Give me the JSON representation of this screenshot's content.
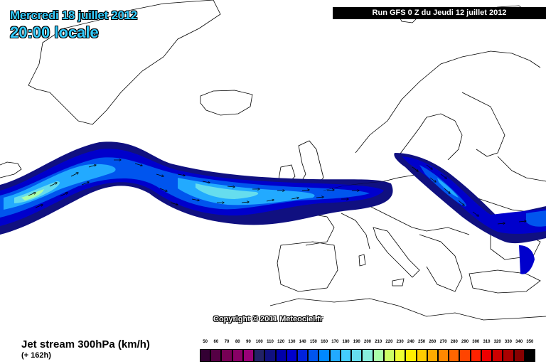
{
  "header": {
    "date": "Mercredi 18 juillet 2012",
    "time": "20:00 locale",
    "run": "Run GFS 0 Z du Jeudi 12 juillet 2012"
  },
  "map": {
    "copyright": "Copyright © 2011 Meteociel.fr",
    "land_color": "#ffffff",
    "coast_color": "#000000"
  },
  "footer": {
    "title": "Jet stream 300hPa (km/h)",
    "forecast": "(+ 162h)"
  },
  "legend": {
    "values": [
      "50",
      "60",
      "70",
      "80",
      "90",
      "100",
      "110",
      "120",
      "130",
      "140",
      "150",
      "160",
      "170",
      "180",
      "190",
      "200",
      "210",
      "220",
      "230",
      "240",
      "250",
      "260",
      "270",
      "280",
      "290",
      "300",
      "310",
      "320",
      "330",
      "340",
      "350"
    ],
    "colors": [
      "#330033",
      "#550044",
      "#770055",
      "#880066",
      "#990077",
      "#222266",
      "#101080",
      "#0000aa",
      "#0000cc",
      "#0022dd",
      "#0055ee",
      "#0088ff",
      "#22aaff",
      "#44ccff",
      "#66ddee",
      "#88eedd",
      "#aaffaa",
      "#ccff66",
      "#eeff33",
      "#ffee00",
      "#ffcc00",
      "#ffaa00",
      "#ff8800",
      "#ff6600",
      "#ff4400",
      "#ff2200",
      "#ee0000",
      "#cc0000",
      "#aa0000",
      "#880000",
      "#000000"
    ]
  }
}
